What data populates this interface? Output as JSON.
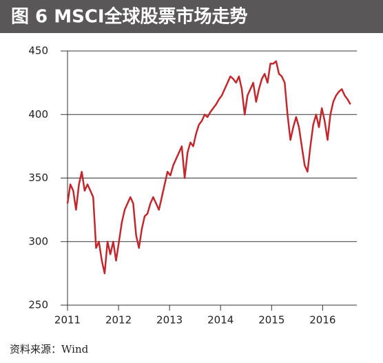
{
  "chart_data": {
    "type": "line",
    "title": "图 6  MSCI全球股票市场走势",
    "source": "资料来源：Wind",
    "x": [
      2011,
      2011.056,
      2011.112,
      2011.168,
      2011.224,
      2011.28,
      2011.336,
      2011.392,
      2011.448,
      2011.504,
      2011.56,
      2011.616,
      2011.672,
      2011.728,
      2011.784,
      2011.84,
      2011.896,
      2011.952,
      2012.008,
      2012.064,
      2012.12,
      2012.176,
      2012.232,
      2012.288,
      2012.344,
      2012.4,
      2012.456,
      2012.512,
      2012.568,
      2012.624,
      2012.68,
      2012.736,
      2012.792,
      2012.848,
      2012.904,
      2012.96,
      2013.016,
      2013.072,
      2013.128,
      2013.184,
      2013.24,
      2013.296,
      2013.352,
      2013.408,
      2013.464,
      2013.52,
      2013.576,
      2013.632,
      2013.688,
      2013.744,
      2013.8,
      2013.856,
      2013.912,
      2013.968,
      2014.024,
      2014.08,
      2014.136,
      2014.192,
      2014.248,
      2014.304,
      2014.36,
      2014.416,
      2014.472,
      2014.528,
      2014.584,
      2014.64,
      2014.696,
      2014.752,
      2014.808,
      2014.864,
      2014.92,
      2014.976,
      2015.032,
      2015.088,
      2015.144,
      2015.2,
      2015.256,
      2015.312,
      2015.368,
      2015.424,
      2015.48,
      2015.536,
      2015.592,
      2015.648,
      2015.704,
      2015.76,
      2015.816,
      2015.872,
      2015.928,
      2015.984,
      2016.04,
      2016.096,
      2016.152,
      2016.208,
      2016.264,
      2016.32,
      2016.376,
      2016.432,
      2016.488,
      2016.544
    ],
    "series": [
      {
        "color": "#c1272d",
        "values": [
          330,
          345,
          340,
          325,
          345,
          355,
          340,
          345,
          340,
          335,
          295,
          300,
          285,
          275,
          300,
          290,
          300,
          285,
          300,
          315,
          325,
          330,
          335,
          330,
          305,
          295,
          310,
          320,
          322,
          330,
          335,
          330,
          325,
          335,
          345,
          355,
          352,
          360,
          365,
          370,
          375,
          350,
          370,
          378,
          375,
          385,
          392,
          395,
          400,
          398,
          402,
          405,
          408,
          412,
          415,
          420,
          425,
          430,
          428,
          425,
          430,
          420,
          400,
          415,
          420,
          425,
          410,
          420,
          428,
          432,
          425,
          440,
          440,
          442,
          432,
          430,
          425,
          400,
          380,
          390,
          398,
          390,
          375,
          360,
          355,
          375,
          392,
          400,
          390,
          405,
          395,
          380,
          400,
          410,
          415,
          418,
          420,
          415,
          412,
          408
        ]
      }
    ],
    "xlim": [
      2011,
      2016.67
    ],
    "xticks": [
      2011,
      2012,
      2013,
      2014,
      2015,
      2016
    ],
    "ylim": [
      250,
      450
    ],
    "yticks": [
      250,
      300,
      350,
      400,
      450
    ],
    "grid": true
  }
}
